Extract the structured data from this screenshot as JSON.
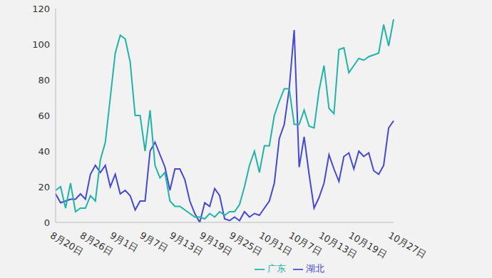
{
  "chart_data": {
    "type": "line",
    "categories": [
      "8月20日",
      null,
      null,
      null,
      null,
      null,
      "8月26日",
      null,
      null,
      null,
      null,
      null,
      "9月1日",
      null,
      null,
      null,
      null,
      null,
      "9月7日",
      null,
      null,
      null,
      null,
      null,
      "9月13日",
      null,
      null,
      null,
      null,
      null,
      "9月19日",
      null,
      null,
      null,
      null,
      null,
      "9月25日",
      null,
      null,
      null,
      null,
      null,
      "10月1日",
      null,
      null,
      null,
      null,
      null,
      "10月7日",
      null,
      null,
      null,
      null,
      null,
      "10月13日",
      null,
      null,
      null,
      null,
      null,
      "10月19日",
      null,
      null,
      null,
      null,
      null,
      null,
      null,
      "10月27日"
    ],
    "series": [
      {
        "name": "湖北",
        "color": "#4548d0",
        "values": [
          16,
          11,
          12,
          13,
          13,
          16,
          13,
          27,
          32,
          28,
          32,
          20,
          27,
          16,
          18,
          15,
          7,
          12,
          12,
          40,
          45,
          38,
          31,
          18,
          30,
          30,
          24,
          12,
          5,
          0,
          11,
          9,
          19,
          15,
          2,
          1,
          3,
          1,
          6,
          3,
          5,
          4,
          8,
          12,
          22,
          47,
          55,
          75,
          108,
          31,
          48,
          27,
          8,
          14,
          22,
          38,
          30,
          23,
          37,
          39,
          30,
          40,
          37,
          39,
          29,
          27,
          32,
          53,
          57
        ]
      },
      {
        "name": "广东",
        "color": "#21b3a7",
        "values": [
          18,
          20,
          8,
          22,
          6,
          8,
          8,
          15,
          12,
          35,
          45,
          70,
          95,
          105,
          103,
          90,
          60,
          60,
          40,
          63,
          32,
          25,
          28,
          12,
          9,
          9,
          7,
          5,
          3,
          3,
          2,
          5,
          3,
          6,
          4,
          6,
          6,
          10,
          20,
          32,
          40,
          28,
          43,
          43,
          60,
          68,
          75,
          75,
          55,
          55,
          63,
          54,
          53,
          74,
          88,
          64,
          61,
          97,
          98,
          84,
          88,
          92,
          91,
          93,
          94,
          95,
          111,
          99,
          114
        ]
      }
    ],
    "ylim": [
      0,
      120
    ],
    "yticks": [
      0,
      20,
      40,
      60,
      80,
      100,
      120
    ],
    "grid": false,
    "legend": "bottom"
  }
}
